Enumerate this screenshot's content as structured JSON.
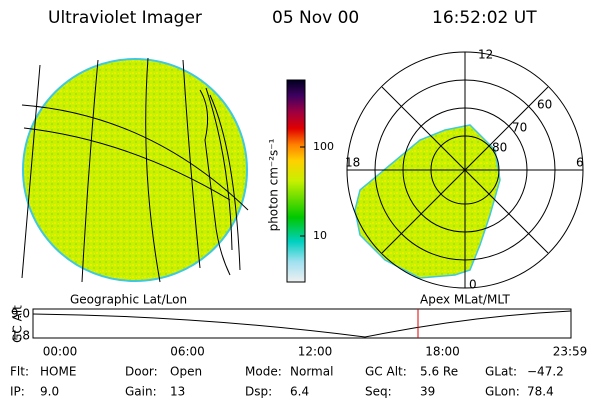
{
  "header": {
    "title": "Ultraviolet Imager",
    "date": "05 Nov 00",
    "time": "16:52:02 UT"
  },
  "colorbar": {
    "label": "photon cm⁻²s⁻¹",
    "ticks": [
      "100",
      "10"
    ]
  },
  "polar": {
    "noon": "12",
    "dusk": "18",
    "dawn": "6",
    "midnight": "0",
    "latitudes": [
      "60",
      "70",
      "80"
    ]
  },
  "timeline": {
    "axis_label": "GC Alt",
    "left_label": "Geographic Lat/Lon",
    "right_label": "Apex MLat/MLT",
    "yticks": [
      "9.0",
      "1.8"
    ],
    "xticks": [
      "00:00",
      "06:00",
      "12:00",
      "18:00",
      "23:59"
    ]
  },
  "footer": {
    "rows": [
      [
        {
          "label": "Flt:",
          "value": "HOME"
        },
        {
          "label": "Door:",
          "value": "Open"
        },
        {
          "label": "Mode:",
          "value": "Normal"
        },
        {
          "label": "GC Alt:",
          "value": "5.6 Re"
        },
        {
          "label": "GLat:",
          "value": "−47.2"
        }
      ],
      [
        {
          "label": "IP:",
          "value": "9.0"
        },
        {
          "label": "Gain:",
          "value": "13"
        },
        {
          "label": "Dsp:",
          "value": "6.4"
        },
        {
          "label": "Seq:",
          "value": "39"
        },
        {
          "label": "GLon:",
          "value": "78.4"
        }
      ]
    ]
  }
}
